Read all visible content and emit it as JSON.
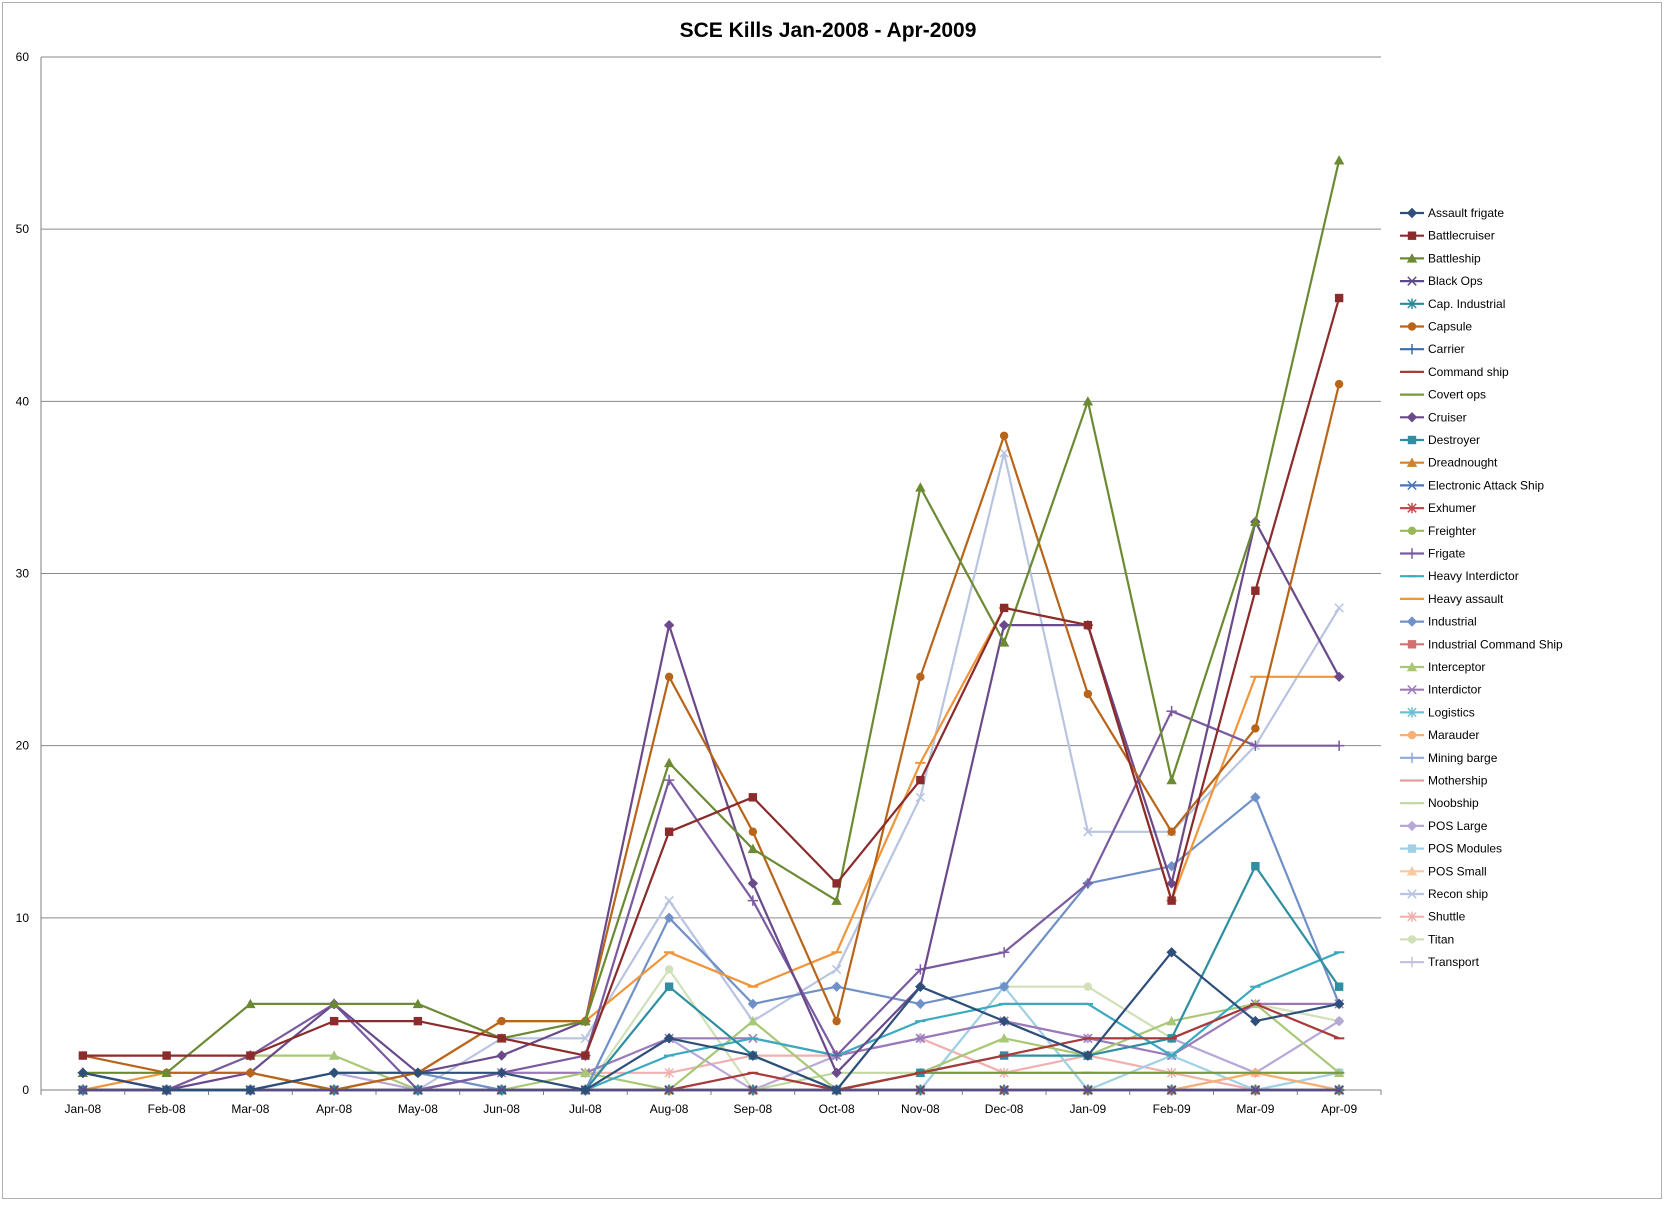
{
  "chart_data": {
    "type": "line",
    "title": "SCE Kills Jan-2008 - Apr-2009",
    "xlabel": "",
    "ylabel": "",
    "ylim": [
      0,
      60
    ],
    "yticks": [
      0,
      10,
      20,
      30,
      40,
      50,
      60
    ],
    "grid": true,
    "legend_position": "right",
    "categories": [
      "Jan-08",
      "Feb-08",
      "Mar-08",
      "Apr-08",
      "May-08",
      "Jun-08",
      "Jul-08",
      "Aug-08",
      "Sep-08",
      "Oct-08",
      "Nov-08",
      "Dec-08",
      "Jan-09",
      "Feb-09",
      "Mar-09",
      "Apr-09"
    ],
    "series": [
      {
        "name": "Assault frigate",
        "color": "#2e4f7a",
        "marker": "diamond",
        "values": [
          1,
          0,
          0,
          1,
          1,
          1,
          0,
          3,
          2,
          0,
          6,
          4,
          2,
          8,
          4,
          5
        ]
      },
      {
        "name": "Battlecruiser",
        "color": "#8b2b2b",
        "marker": "square",
        "values": [
          2,
          2,
          2,
          4,
          4,
          3,
          2,
          15,
          17,
          12,
          18,
          28,
          27,
          11,
          29,
          46
        ]
      },
      {
        "name": "Battleship",
        "color": "#6b8a33",
        "marker": "triangle",
        "values": [
          1,
          1,
          5,
          5,
          5,
          3,
          4,
          19,
          14,
          11,
          35,
          26,
          40,
          18,
          33,
          54
        ]
      },
      {
        "name": "Black Ops",
        "color": "#5b4a85",
        "marker": "x",
        "values": [
          0,
          0,
          0,
          0,
          0,
          0,
          0,
          0,
          0,
          0,
          0,
          0,
          0,
          0,
          0,
          0
        ]
      },
      {
        "name": "Cap. Industrial",
        "color": "#2b8a9a",
        "marker": "star",
        "values": [
          0,
          0,
          0,
          0,
          0,
          0,
          0,
          0,
          0,
          0,
          0,
          0,
          0,
          0,
          0,
          0
        ]
      },
      {
        "name": "Capsule",
        "color": "#b8651b",
        "marker": "circle",
        "values": [
          2,
          1,
          1,
          0,
          1,
          4,
          4,
          24,
          15,
          4,
          24,
          38,
          23,
          15,
          21,
          41
        ]
      },
      {
        "name": "Carrier",
        "color": "#3d6aa8",
        "marker": "plus",
        "values": [
          0,
          0,
          0,
          0,
          0,
          0,
          0,
          0,
          0,
          0,
          0,
          0,
          0,
          0,
          0,
          0
        ]
      },
      {
        "name": "Command ship",
        "color": "#a83a3a",
        "marker": "dash",
        "values": [
          0,
          0,
          0,
          0,
          0,
          0,
          0,
          0,
          1,
          0,
          1,
          2,
          3,
          3,
          5,
          3
        ]
      },
      {
        "name": "Covert ops",
        "color": "#7a9a40",
        "marker": "dash",
        "values": [
          0,
          0,
          0,
          0,
          0,
          0,
          0,
          0,
          0,
          0,
          1,
          1,
          1,
          1,
          1,
          1
        ]
      },
      {
        "name": "Cruiser",
        "color": "#6a4a8a",
        "marker": "diamond",
        "values": [
          0,
          0,
          1,
          5,
          1,
          2,
          4,
          27,
          12,
          1,
          6,
          27,
          27,
          12,
          33,
          24
        ]
      },
      {
        "name": "Destroyer",
        "color": "#2e8fa0",
        "marker": "square",
        "values": [
          0,
          0,
          0,
          0,
          0,
          0,
          0,
          6,
          2,
          0,
          1,
          2,
          2,
          3,
          13,
          6
        ]
      },
      {
        "name": "Dreadnought",
        "color": "#d0812e",
        "marker": "triangle",
        "values": [
          0,
          0,
          0,
          0,
          0,
          0,
          0,
          0,
          0,
          0,
          0,
          0,
          0,
          0,
          0,
          0
        ]
      },
      {
        "name": "Electronic Attack Ship",
        "color": "#4a73b8",
        "marker": "x",
        "values": [
          0,
          0,
          0,
          0,
          0,
          0,
          0,
          0,
          0,
          0,
          0,
          0,
          0,
          0,
          0,
          0
        ]
      },
      {
        "name": "Exhumer",
        "color": "#c24a4a",
        "marker": "star",
        "values": [
          0,
          0,
          0,
          0,
          0,
          0,
          0,
          0,
          0,
          0,
          0,
          0,
          0,
          0,
          0,
          0
        ]
      },
      {
        "name": "Freighter",
        "color": "#9ab85a",
        "marker": "circle",
        "values": [
          0,
          0,
          0,
          0,
          0,
          0,
          0,
          0,
          0,
          0,
          0,
          0,
          0,
          0,
          0,
          0
        ]
      },
      {
        "name": "Frigate",
        "color": "#7a5aa0",
        "marker": "plus",
        "values": [
          1,
          0,
          2,
          5,
          0,
          1,
          2,
          18,
          11,
          2,
          7,
          8,
          12,
          22,
          20,
          20
        ]
      },
      {
        "name": "Heavy Interdictor",
        "color": "#3aaac0",
        "marker": "dash",
        "values": [
          0,
          0,
          0,
          0,
          0,
          0,
          0,
          2,
          3,
          2,
          4,
          5,
          5,
          2,
          6,
          8
        ]
      },
      {
        "name": "Heavy assault",
        "color": "#f0953a",
        "marker": "dash",
        "values": [
          0,
          1,
          1,
          0,
          1,
          4,
          4,
          8,
          6,
          8,
          19,
          28,
          27,
          11,
          24,
          24
        ]
      },
      {
        "name": "Industrial",
        "color": "#7090c8",
        "marker": "diamond",
        "values": [
          1,
          0,
          0,
          1,
          1,
          0,
          0,
          10,
          5,
          6,
          5,
          6,
          12,
          13,
          17,
          5
        ]
      },
      {
        "name": "Industrial Command Ship",
        "color": "#d07070",
        "marker": "square",
        "values": [
          0,
          0,
          0,
          0,
          0,
          0,
          0,
          0,
          0,
          0,
          0,
          0,
          0,
          0,
          0,
          0
        ]
      },
      {
        "name": "Interceptor",
        "color": "#a8c878",
        "marker": "triangle",
        "values": [
          0,
          0,
          2,
          2,
          0,
          0,
          1,
          0,
          4,
          0,
          1,
          3,
          2,
          4,
          5,
          1
        ]
      },
      {
        "name": "Interdictor",
        "color": "#9a7ab8",
        "marker": "x",
        "values": [
          0,
          0,
          0,
          0,
          0,
          1,
          1,
          3,
          3,
          2,
          3,
          4,
          3,
          2,
          5,
          5
        ]
      },
      {
        "name": "Logistics",
        "color": "#6cc0d6",
        "marker": "star",
        "values": [
          0,
          0,
          0,
          0,
          0,
          0,
          0,
          0,
          0,
          0,
          0,
          0,
          0,
          0,
          0,
          0
        ]
      },
      {
        "name": "Marauder",
        "color": "#f5b07a",
        "marker": "circle",
        "values": [
          0,
          0,
          0,
          0,
          0,
          0,
          0,
          0,
          0,
          0,
          0,
          0,
          0,
          0,
          1,
          0
        ]
      },
      {
        "name": "Mining barge",
        "color": "#90a8d8",
        "marker": "plus",
        "values": [
          0,
          0,
          0,
          0,
          0,
          0,
          0,
          0,
          0,
          0,
          0,
          0,
          0,
          0,
          0,
          0
        ]
      },
      {
        "name": "Mothership",
        "color": "#e0a0a0",
        "marker": "dash",
        "values": [
          0,
          0,
          0,
          0,
          0,
          0,
          0,
          0,
          0,
          0,
          0,
          0,
          0,
          0,
          0,
          0
        ]
      },
      {
        "name": "Noobship",
        "color": "#c0d8a0",
        "marker": "dash",
        "values": [
          0,
          0,
          0,
          0,
          0,
          0,
          0,
          0,
          0,
          1,
          1,
          1,
          1,
          1,
          1,
          1
        ]
      },
      {
        "name": "POS Large",
        "color": "#b8a8d8",
        "marker": "diamond",
        "values": [
          1,
          0,
          0,
          1,
          0,
          0,
          0,
          3,
          0,
          2,
          3,
          4,
          3,
          3,
          1,
          4
        ]
      },
      {
        "name": "POS Modules",
        "color": "#a0d0e6",
        "marker": "square",
        "values": [
          0,
          0,
          0,
          0,
          0,
          0,
          0,
          0,
          0,
          0,
          0,
          6,
          0,
          2,
          0,
          1
        ]
      },
      {
        "name": "POS Small",
        "color": "#f8c8a0",
        "marker": "triangle",
        "values": [
          0,
          0,
          0,
          0,
          0,
          0,
          0,
          0,
          0,
          0,
          0,
          0,
          0,
          0,
          1,
          0
        ]
      },
      {
        "name": "Recon ship",
        "color": "#b8c4e0",
        "marker": "x",
        "values": [
          0,
          0,
          0,
          0,
          0,
          3,
          3,
          11,
          4,
          7,
          17,
          37,
          15,
          15,
          20,
          28
        ]
      },
      {
        "name": "Shuttle",
        "color": "#f0b0b0",
        "marker": "star",
        "values": [
          0,
          0,
          0,
          0,
          0,
          1,
          1,
          1,
          2,
          2,
          3,
          1,
          2,
          1,
          0,
          0
        ]
      },
      {
        "name": "Titan",
        "color": "#d0e0b8",
        "marker": "circle",
        "values": [
          0,
          0,
          0,
          0,
          0,
          0,
          0,
          7,
          0,
          0,
          0,
          6,
          6,
          3,
          5,
          4
        ]
      },
      {
        "name": "Transport",
        "color": "#c8c0e0",
        "marker": "plus",
        "values": [
          0,
          0,
          0,
          0,
          0,
          0,
          0,
          0,
          0,
          0,
          0,
          0,
          0,
          0,
          0,
          0
        ]
      }
    ]
  }
}
